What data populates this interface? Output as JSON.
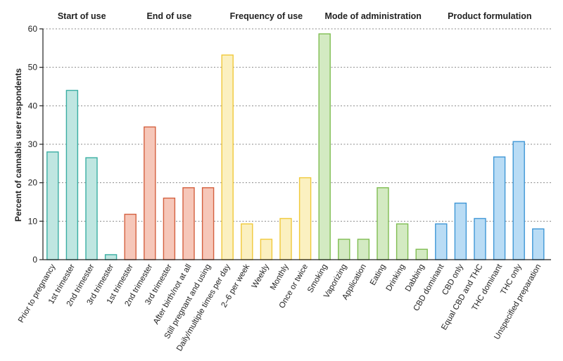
{
  "chart_data": {
    "type": "bar",
    "title": "",
    "xlabel": "",
    "ylabel": "Percent of cannabis user respondents",
    "ylim": [
      0,
      60
    ],
    "yticks": [
      0,
      10,
      20,
      30,
      40,
      50,
      60
    ],
    "grid": true,
    "groups": [
      {
        "name": "Start of use",
        "fill": "#bfe6e1",
        "stroke": "#3aaea3",
        "categories": [
          "Prior to pregnancy",
          "1st trimester",
          "2nd trimester",
          "3rd trimester"
        ],
        "values": [
          28,
          44,
          26.5,
          1.3
        ]
      },
      {
        "name": "End of use",
        "fill": "#f6c7b9",
        "stroke": "#d4603f",
        "categories": [
          "1st trimester",
          "2nd trimester",
          "3rd trimester",
          "After birth/not at all",
          "Still pregnant and using"
        ],
        "values": [
          11.8,
          34.5,
          16,
          18.7,
          18.7
        ]
      },
      {
        "name": "Frequency of use",
        "fill": "#fbf0c0",
        "stroke": "#f0c93a",
        "categories": [
          "Daily/multiple times per day",
          "2–6 per week",
          "Weekly",
          "Monthly",
          "Once or twice"
        ],
        "values": [
          53.2,
          9.3,
          5.3,
          10.7,
          21.3
        ]
      },
      {
        "name": "Mode of administration",
        "fill": "#d3eac2",
        "stroke": "#7fbd52",
        "categories": [
          "Smoking",
          "Vaporizing",
          "Application",
          "Eating",
          "Drinking",
          "Dabbing"
        ],
        "values": [
          58.7,
          5.3,
          5.3,
          18.7,
          9.3,
          2.7
        ]
      },
      {
        "name": "Product formulation",
        "fill": "#b9dcf5",
        "stroke": "#3f97d6",
        "categories": [
          "CBD dominant",
          "CBD only",
          "Equal CBD and THC",
          "THC dominant",
          "THC only",
          "Unspecified preparation"
        ],
        "values": [
          9.3,
          14.7,
          10.7,
          26.7,
          30.7,
          8
        ]
      }
    ]
  }
}
